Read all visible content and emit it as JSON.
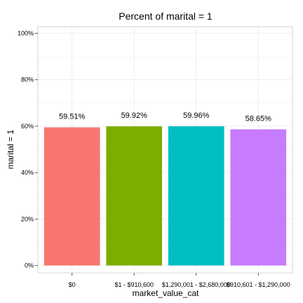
{
  "chart_data": {
    "type": "bar",
    "title": "Percent of marital = 1",
    "xlabel": "market_value_cat",
    "ylabel": "marital = 1",
    "categories": [
      "$0",
      "$1 - $910,600",
      "$1,290,001 - $2,680,000",
      "$910,601 - $1,290,000"
    ],
    "values": [
      59.51,
      59.92,
      59.96,
      58.65
    ],
    "value_labels": [
      "59.51%",
      "59.92%",
      "59.96%",
      "58.65%"
    ],
    "colors": [
      "#F8766D",
      "#7CAE00",
      "#00BFC4",
      "#C77CFF"
    ],
    "ylim": [
      0,
      100
    ],
    "y_ticks": [
      0,
      20,
      40,
      60,
      80,
      100
    ],
    "y_tick_labels": [
      "0%",
      "20%",
      "40%",
      "60%",
      "80%",
      "100%"
    ],
    "grid": true,
    "legend": "none"
  }
}
